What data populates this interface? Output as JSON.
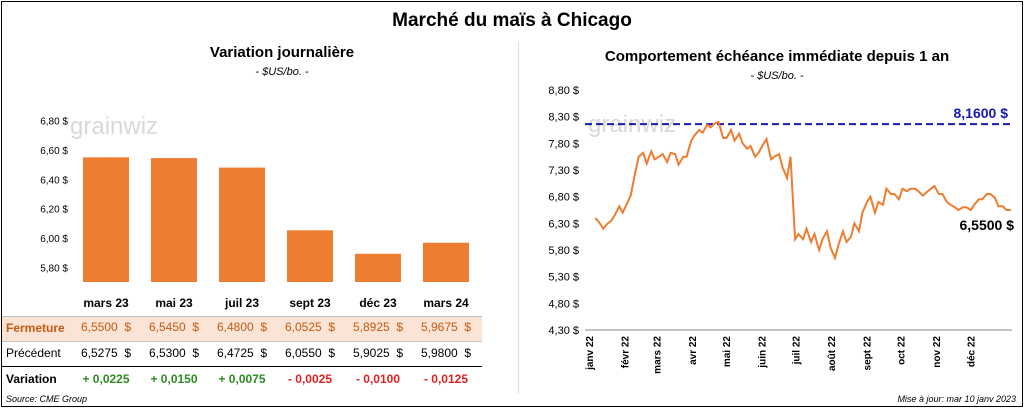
{
  "main_title": "Marché du maïs à Chicago",
  "left": {
    "title": "Variation  journalière",
    "unit": "- $US/bo. -",
    "watermark": "grainwiz",
    "row_labels": {
      "fermeture": "Fermeture",
      "precedent": "Précédent",
      "variation": "Variation"
    },
    "months": [
      "mars 23",
      "mai 23",
      "juil 23",
      "sept 23",
      "déc 23",
      "mars 24"
    ],
    "fermeture": [
      "6,5500  $",
      "6,5450  $",
      "6,4800  $",
      "6,0525  $",
      "5,8925  $",
      "5,9675  $"
    ],
    "precedent": [
      "6,5275  $",
      "6,5300  $",
      "6,4725  $",
      "6,0550  $",
      "5,9025  $",
      "5,9800  $"
    ],
    "variation": [
      "+ 0,0225",
      "+ 0,0150",
      "+ 0,0075",
      "- 0,0025",
      "- 0,0100",
      "- 0,0125"
    ],
    "colors": {
      "bar": "#ED7D31",
      "fermeture_bg": "#FBE4D5",
      "positive": "#2E8B22",
      "negative": "#E02020"
    }
  },
  "right": {
    "title": "Comportement  échéance immédiate depuis 1 an",
    "unit": "- $US/bo. -",
    "watermark": "grainwiz",
    "target_label": "8,1600 $",
    "last_label": "6,5500 $",
    "colors": {
      "line": "#ED7D31",
      "target": "#1A1AB0"
    }
  },
  "footer": {
    "source": "Source: CME Group",
    "update": "Mise à jour: mar 10 janv 2023"
  },
  "chart_data": [
    {
      "type": "bar",
      "title": "Variation  journalière",
      "categories": [
        "mars 23",
        "mai 23",
        "juil 23",
        "sept 23",
        "déc 23",
        "mars 24"
      ],
      "values": [
        6.55,
        6.545,
        6.48,
        6.0525,
        5.8925,
        5.9675
      ],
      "ylim": [
        5.7,
        6.9
      ],
      "yticks": [
        "5,80 $",
        "6,00 $",
        "6,20 $",
        "6,40 $",
        "6,60 $",
        "6,80 $"
      ],
      "grid": false
    },
    {
      "type": "line",
      "title": "Comportement  échéance immédiate depuis 1 an",
      "ylim": [
        4.3,
        8.8
      ],
      "yticks": [
        "4,30 $",
        "4,80 $",
        "5,30 $",
        "5,80 $",
        "6,30 $",
        "6,80 $",
        "7,30 $",
        "7,80 $",
        "8,30 $",
        "8,80 $"
      ],
      "xticks": [
        "janv 22",
        "févr 22",
        "mars 22",
        "avr 22",
        "mai 22",
        "juin 22",
        "juil 22",
        "août 22",
        "sept 22",
        "oct 22",
        "nov 22",
        "déc 22"
      ],
      "target": 8.16,
      "series": [
        {
          "x": [
            "2022-01-10",
            "2022-01-13",
            "2022-01-17",
            "2022-01-20",
            "2022-01-24",
            "2022-01-27",
            "2022-01-31",
            "2022-02-03",
            "2022-02-07",
            "2022-02-10",
            "2022-02-14",
            "2022-02-17",
            "2022-02-21",
            "2022-02-24",
            "2022-02-28",
            "2022-03-03",
            "2022-03-07",
            "2022-03-10",
            "2022-03-14",
            "2022-03-17",
            "2022-03-21",
            "2022-03-24",
            "2022-03-28",
            "2022-03-31",
            "2022-04-04",
            "2022-04-07",
            "2022-04-11",
            "2022-04-14",
            "2022-04-18",
            "2022-04-21",
            "2022-04-25",
            "2022-04-28",
            "2022-05-02",
            "2022-05-05",
            "2022-05-09",
            "2022-05-12",
            "2022-05-16",
            "2022-05-19",
            "2022-05-23",
            "2022-05-26",
            "2022-05-30",
            "2022-06-02",
            "2022-06-06",
            "2022-06-09",
            "2022-06-13",
            "2022-06-16",
            "2022-06-20",
            "2022-06-23",
            "2022-06-27",
            "2022-06-30",
            "2022-07-04",
            "2022-07-07",
            "2022-07-11",
            "2022-07-14",
            "2022-07-18",
            "2022-07-21",
            "2022-07-25",
            "2022-07-28",
            "2022-08-01",
            "2022-08-04",
            "2022-08-08",
            "2022-08-11",
            "2022-08-15",
            "2022-08-18",
            "2022-08-22",
            "2022-08-25",
            "2022-08-29",
            "2022-09-01",
            "2022-09-05",
            "2022-09-08",
            "2022-09-12",
            "2022-09-15",
            "2022-09-19",
            "2022-09-22",
            "2022-09-26",
            "2022-09-29",
            "2022-10-03",
            "2022-10-06",
            "2022-10-10",
            "2022-10-13",
            "2022-10-17",
            "2022-10-20",
            "2022-10-24",
            "2022-10-27",
            "2022-10-31",
            "2022-11-03",
            "2022-11-07",
            "2022-11-10",
            "2022-11-14",
            "2022-11-17",
            "2022-11-21",
            "2022-11-24",
            "2022-11-28",
            "2022-12-01",
            "2022-12-05",
            "2022-12-08",
            "2022-12-12",
            "2022-12-15",
            "2022-12-19",
            "2022-12-22",
            "2022-12-26",
            "2022-12-29",
            "2023-01-02",
            "2023-01-05",
            "2023-01-09"
          ],
          "y": [
            6.4,
            6.33,
            6.2,
            6.28,
            6.35,
            6.45,
            6.62,
            6.5,
            6.68,
            6.82,
            7.25,
            7.55,
            7.62,
            7.42,
            7.65,
            7.5,
            7.55,
            7.6,
            7.45,
            7.62,
            7.6,
            7.4,
            7.55,
            7.55,
            7.85,
            7.95,
            8.05,
            8.0,
            8.15,
            8.1,
            8.18,
            8.2,
            7.9,
            7.9,
            8.05,
            7.85,
            7.98,
            7.8,
            7.7,
            7.75,
            7.55,
            7.62,
            7.78,
            7.88,
            7.5,
            7.55,
            7.6,
            7.35,
            7.15,
            7.55,
            6.0,
            6.1,
            6.0,
            6.2,
            5.95,
            6.1,
            5.8,
            6.0,
            6.15,
            5.85,
            5.65,
            5.9,
            6.15,
            5.95,
            6.05,
            6.3,
            6.15,
            6.5,
            6.7,
            6.8,
            6.5,
            6.7,
            6.65,
            6.95,
            6.85,
            6.85,
            6.75,
            6.95,
            6.9,
            6.95,
            6.95,
            6.9,
            6.82,
            6.88,
            6.95,
            7.0,
            6.85,
            6.85,
            6.7,
            6.65,
            6.6,
            6.55,
            6.6,
            6.6,
            6.55,
            6.65,
            6.75,
            6.75,
            6.85,
            6.85,
            6.78,
            6.62,
            6.62,
            6.55,
            6.55
          ]
        }
      ]
    }
  ]
}
